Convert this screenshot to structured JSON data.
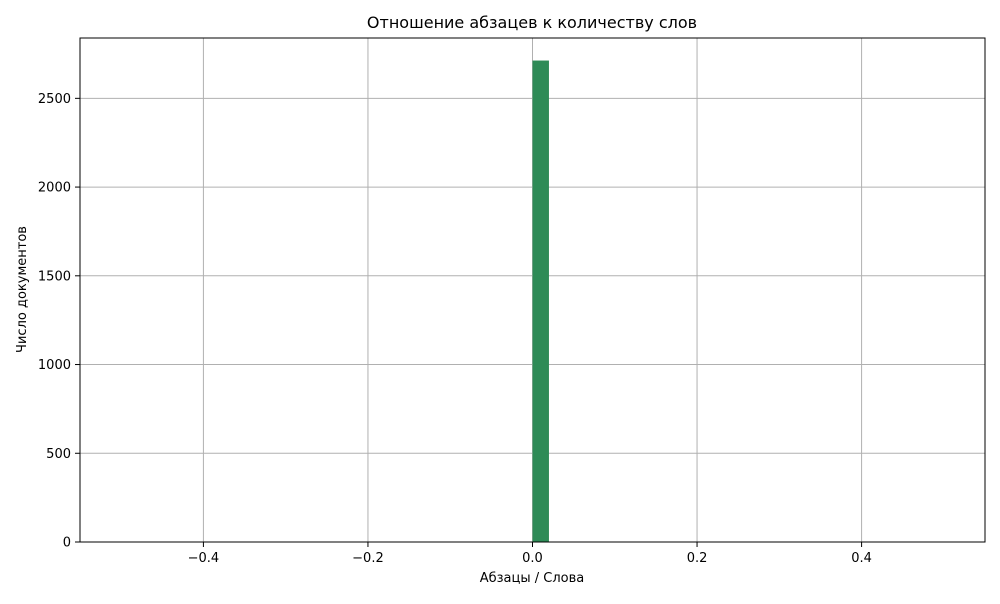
{
  "chart_data": {
    "type": "bar",
    "title": "Отношение абзацев к количеству слов",
    "xlabel": "Абзацы / Слова",
    "ylabel": "Число документов",
    "xlim": [
      -0.55,
      0.55
    ],
    "ylim": [
      0,
      2840
    ],
    "xticks": [
      -0.4,
      -0.2,
      0.0,
      0.2,
      0.4
    ],
    "xtick_labels": [
      "−0.4",
      "−0.2",
      "0.0",
      "0.2",
      "0.4"
    ],
    "yticks": [
      0,
      500,
      1000,
      1500,
      2000,
      2500
    ],
    "ytick_labels": [
      "0",
      "500",
      "1000",
      "1500",
      "2000",
      "2500"
    ],
    "grid": true,
    "bars": [
      {
        "x0": 0.0,
        "x1": 0.02,
        "value": 2713
      }
    ],
    "colors": {
      "bar": "#2e8b57",
      "grid": "#b0b0b0"
    }
  }
}
